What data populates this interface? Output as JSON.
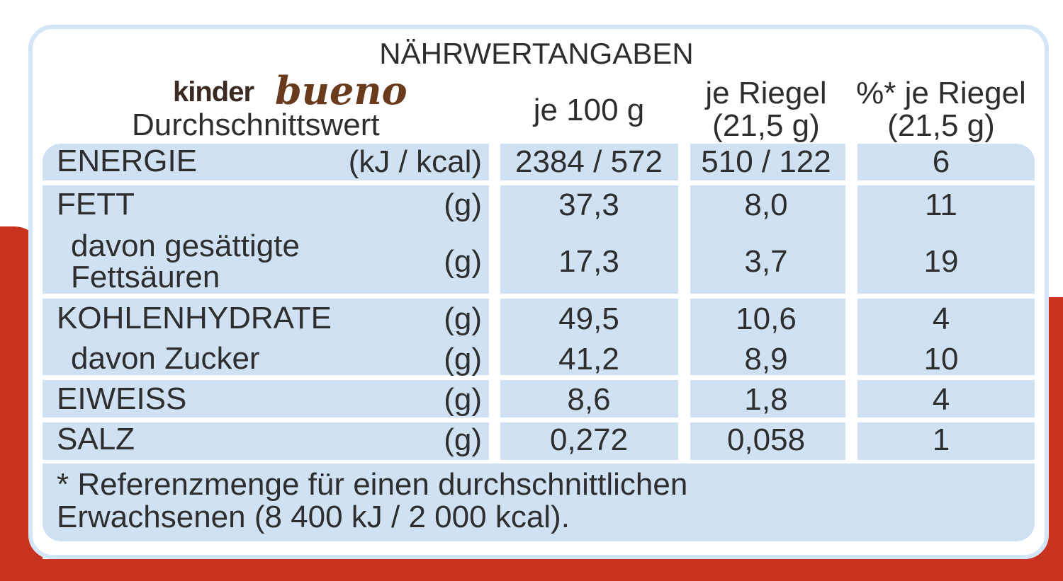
{
  "header": {
    "title": "NÄHRWERTANGABEN",
    "brand": [
      "kinder",
      "bueno"
    ],
    "label": "Durchschnittswert",
    "columns": [
      [
        "je 100 g"
      ],
      [
        "je Riegel",
        "(21,5 g)"
      ],
      [
        "%* je Riegel",
        "(21,5 g)"
      ]
    ]
  },
  "table": {
    "rows": [
      {
        "label": "ENERGIE",
        "unit": "(kJ / kcal)",
        "values": [
          "2384 / 572",
          "510 / 122",
          "6"
        ]
      },
      {
        "label": "FETT",
        "unit": "(g)",
        "values": [
          "37,3",
          "8,0",
          "11"
        ]
      },
      {
        "label": "davon gesättigte Fettsäuren",
        "unit": "(g)",
        "values": [
          "17,3",
          "3,7",
          "19"
        ]
      },
      {
        "label": "KOHLENHYDRATE",
        "unit": "(g)",
        "values": [
          "49,5",
          "10,6",
          "4"
        ]
      },
      {
        "label": "davon Zucker",
        "unit": "(g)",
        "values": [
          "41,2",
          "8,9",
          "10"
        ]
      },
      {
        "label": "EIWEISS",
        "unit": "(g)",
        "values": [
          "8,6",
          "1,8",
          "4"
        ]
      },
      {
        "label": "SALZ",
        "unit": "(g)",
        "values": [
          "0,272",
          "0,058",
          "1"
        ]
      }
    ]
  },
  "footnote": [
    "* Referenzmenge für einen durchschnittlichen",
    "Erwachsenen (8 400 kJ / 2 000 kcal)."
  ]
}
